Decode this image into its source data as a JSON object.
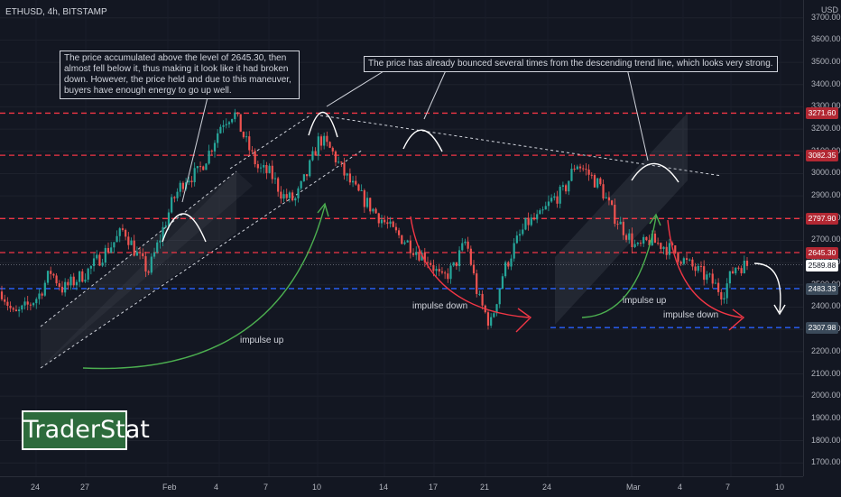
{
  "header": {
    "symbol": "ETHUSD, 4h, BITSTAMP"
  },
  "chart_data": {
    "type": "candlestick",
    "symbol": "ETHUSD",
    "timeframe": "4h",
    "exchange": "BITSTAMP",
    "price_unit": "USD",
    "ylim": [
      1640,
      3780
    ],
    "y_ticks": [
      "3700.00",
      "3600.00",
      "3500.00",
      "3400.00",
      "3300.00",
      "3200.00",
      "3100.00",
      "3000.00",
      "2900.00",
      "2800.00",
      "2700.00",
      "2600.00",
      "2500.00",
      "2400.00",
      "2300.00",
      "2200.00",
      "2100.00",
      "2000.00",
      "1900.00",
      "1800.00",
      "1700.00"
    ],
    "x_ticks": [
      "24",
      "27",
      "Feb",
      "4",
      "7",
      "10",
      "14",
      "17",
      "21",
      "24",
      "Mar",
      "4",
      "7",
      "10"
    ],
    "current_price": "2589.88",
    "levels": [
      {
        "value": "3271.60",
        "style": "dashed",
        "color": "#f23645"
      },
      {
        "value": "3082.35",
        "style": "dashed",
        "color": "#f23645"
      },
      {
        "value": "2797.90",
        "style": "dashed",
        "color": "#f23645"
      },
      {
        "value": "2645.30",
        "style": "dashed",
        "color": "#f23645"
      },
      {
        "value": "2483.33",
        "style": "dashed",
        "color": "#2962ff"
      },
      {
        "value": "2307.98",
        "style": "dashed",
        "color": "#2962ff"
      }
    ],
    "price_path": [
      2470,
      2360,
      2400,
      2450,
      2560,
      2480,
      2520,
      2560,
      2620,
      2680,
      2750,
      2640,
      2560,
      2720,
      2880,
      2980,
      3000,
      3100,
      3230,
      3275,
      3140,
      3020,
      3000,
      2900,
      2880,
      3000,
      3160,
      3100,
      3000,
      2920,
      2860,
      2800,
      2740,
      2700,
      2650,
      2610,
      2520,
      2580,
      2700,
      2440,
      2320,
      2550,
      2680,
      2780,
      2800,
      2880,
      2920,
      3050,
      3000,
      2940,
      2820,
      2740,
      2660,
      2700,
      2680,
      2650,
      2600,
      2560,
      2520,
      2460,
      2583,
      2589
    ],
    "annotations": [
      "The price accumulated above the level of 2645.30, then almost fell below it, thus making it look like it had broken down. However, the price held and due to this maneuver, buyers have enough energy to go up well.",
      "The price has already bounced several times from the descending trend line, which looks very strong.",
      "impulse up",
      "impulse down",
      "impulse up",
      "impulse down"
    ],
    "colors": {
      "up": "#26a69a",
      "down": "#ef5350",
      "resistance": "#f23645",
      "support": "#2962ff",
      "impulse_up": "#4caf50",
      "impulse_down": "#f23645"
    }
  },
  "brand": {
    "name": "TraderStat"
  }
}
